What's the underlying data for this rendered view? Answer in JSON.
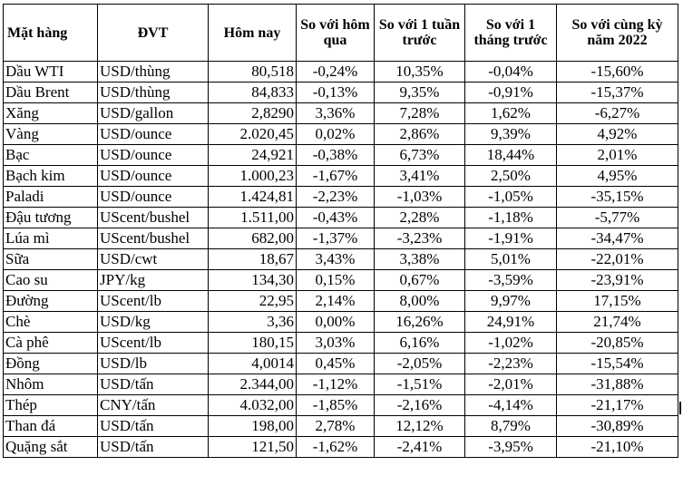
{
  "table": {
    "headers": [
      "Mặt hàng",
      "ĐVT",
      "Hôm nay",
      "So với hôm qua",
      "So với 1 tuần trước",
      "So với 1 tháng trước",
      "So với cùng kỳ năm 2022"
    ],
    "rows": [
      [
        "Dầu WTI",
        "USD/thùng",
        "80,518",
        "-0,24%",
        "10,35%",
        "-0,04%",
        "-15,60%"
      ],
      [
        "Dầu Brent",
        "USD/thùng",
        "84,833",
        "-0,13%",
        "9,35%",
        "-0,91%",
        "-15,37%"
      ],
      [
        "Xăng",
        "USD/gallon",
        "2,8290",
        "3,36%",
        "7,28%",
        "1,62%",
        "-6,27%"
      ],
      [
        "Vàng",
        "USD/ounce",
        "2.020,45",
        "0,02%",
        "2,86%",
        "9,39%",
        "4,92%"
      ],
      [
        "Bạc",
        "USD/ounce",
        "24,921",
        "-0,38%",
        "6,73%",
        "18,44%",
        "2,01%"
      ],
      [
        "Bạch kim",
        "USD/ounce",
        "1.000,23",
        "-1,67%",
        "3,41%",
        "2,50%",
        "4,95%"
      ],
      [
        "Paladi",
        "USD/ounce",
        "1.424,81",
        "-2,23%",
        "-1,03%",
        "-1,05%",
        "-35,15%"
      ],
      [
        "Đậu tương",
        "UScent/bushel",
        "1.511,00",
        "-0,43%",
        "2,28%",
        "-1,18%",
        "-5,77%"
      ],
      [
        "Lúa mì",
        "UScent/bushel",
        "682,00",
        "-1,37%",
        "-3,23%",
        "-1,91%",
        "-34,47%"
      ],
      [
        "Sữa",
        "USD/cwt",
        "18,67",
        "3,43%",
        "3,38%",
        "5,01%",
        "-22,01%"
      ],
      [
        "Cao su",
        "JPY/kg",
        "134,30",
        "0,15%",
        "0,67%",
        "-3,59%",
        "-23,91%"
      ],
      [
        "Đường",
        "UScent/lb",
        "22,95",
        "2,14%",
        "8,00%",
        "9,97%",
        "17,15%"
      ],
      [
        "Chè",
        "USD/kg",
        "3,36",
        "0,00%",
        "16,26%",
        "24,91%",
        "21,74%"
      ],
      [
        "Cà phê",
        "UScent/lb",
        "180,15",
        "3,03%",
        "6,16%",
        "-1,02%",
        "-20,85%"
      ],
      [
        "Đồng",
        "USD/lb",
        "4,0014",
        "0,45%",
        "-2,05%",
        "-2,23%",
        "-15,54%"
      ],
      [
        "Nhôm",
        "USD/tấn",
        "2.344,00",
        "-1,12%",
        "-1,51%",
        "-2,01%",
        "-31,88%"
      ],
      [
        "Thép",
        "CNY/tấn",
        "4.032,00",
        "-1,85%",
        "-2,16%",
        "-4,14%",
        "-21,17%"
      ],
      [
        "Than đá",
        "USD/tấn",
        "198,00",
        "2,78%",
        "12,12%",
        "8,79%",
        "-30,89%"
      ],
      [
        "Quặng sắt",
        "USD/tấn",
        "121,50",
        "-1,62%",
        "-2,41%",
        "-3,95%",
        "-21,10%"
      ]
    ]
  }
}
